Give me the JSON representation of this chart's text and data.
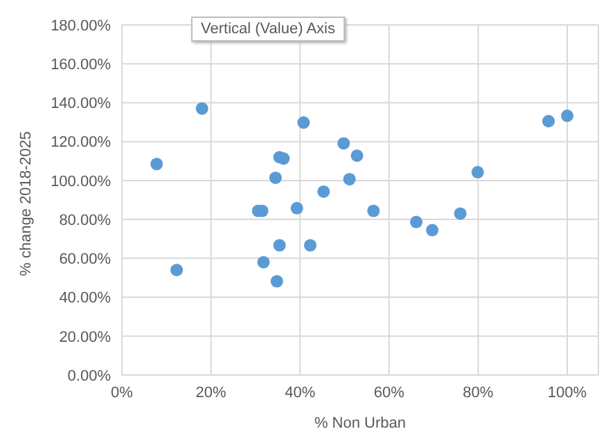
{
  "chart_data": {
    "type": "scatter",
    "xlabel": "% Non Urban",
    "ylabel": "% change 2018-2025",
    "annotations": [
      "Vertical (Value) Axis"
    ],
    "x": [
      7.8,
      18,
      12.3,
      30.6,
      31.5,
      31.8,
      34.8,
      35.4,
      42.3,
      39.3,
      34.5,
      35.4,
      36.3,
      40.8,
      45.3,
      49.8,
      51.1,
      52.8,
      56.5,
      66.1,
      69.7,
      76,
      79.9,
      95.8,
      100
    ],
    "series": [
      {
        "color": "#5b9bd5",
        "values": [
          108.5,
          137,
          54,
          84.4,
          84.4,
          58,
          48.2,
          66.7,
          66.7,
          85.8,
          101.4,
          112,
          111.3,
          129.8,
          94.3,
          119.1,
          100.7,
          112.8,
          84.4,
          78.7,
          74.5,
          83,
          104.3,
          130.5,
          133.3
        ]
      }
    ],
    "xlim": [
      0,
      107
    ],
    "ylim": [
      0,
      180
    ],
    "xticks": [
      {
        "value": 0,
        "label": "0%"
      },
      {
        "value": 20,
        "label": "20%"
      },
      {
        "value": 40,
        "label": "40%"
      },
      {
        "value": 60,
        "label": "60%"
      },
      {
        "value": 80,
        "label": "80%"
      },
      {
        "value": 100,
        "label": "100%"
      }
    ],
    "yticks": [
      {
        "value": 0,
        "label": "0.00%"
      },
      {
        "value": 20,
        "label": "20.00%"
      },
      {
        "value": 40,
        "label": "40.00%"
      },
      {
        "value": 60,
        "label": "60.00%"
      },
      {
        "value": 80,
        "label": "80.00%"
      },
      {
        "value": 100,
        "label": "100.00%"
      },
      {
        "value": 120,
        "label": "120.00%"
      },
      {
        "value": 140,
        "label": "140.00%"
      },
      {
        "value": 160,
        "label": "160.00%"
      },
      {
        "value": 180,
        "label": "180.00%"
      }
    ],
    "grid": true,
    "marker": "circle",
    "legend": false
  }
}
